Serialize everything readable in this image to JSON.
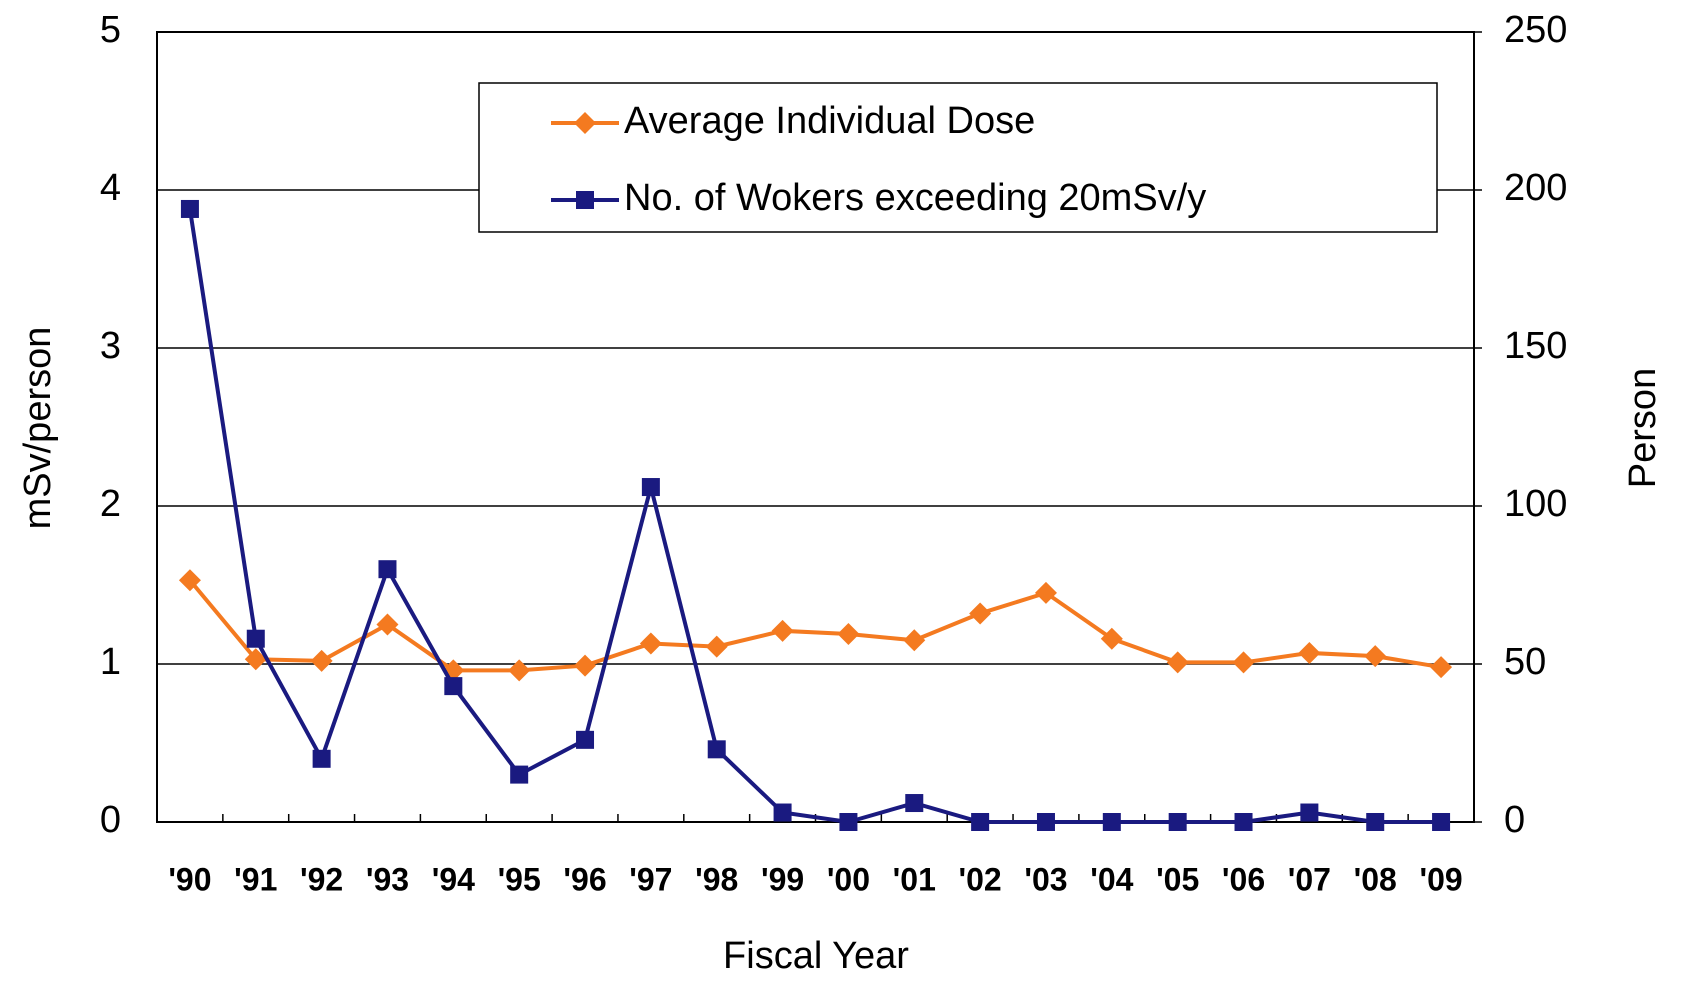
{
  "chart_data": {
    "type": "line",
    "x_label": "Fiscal Year",
    "y_label": "mSv/person",
    "y2_label": "Person",
    "categories": [
      "'90",
      "'91",
      "'92",
      "'93",
      "'94",
      "'95",
      "'96",
      "'97",
      "'98",
      "'99",
      "'00",
      "'01",
      "'02",
      "'03",
      "'04",
      "'05",
      "'06",
      "'07",
      "'08",
      "'09"
    ],
    "series": [
      {
        "name": "Average Individual Dose",
        "color": "#f47a20",
        "marker": "diamond",
        "values": [
          1.53,
          1.03,
          1.02,
          1.25,
          0.96,
          0.96,
          0.99,
          1.13,
          1.11,
          1.21,
          1.19,
          1.15,
          1.32,
          1.45,
          1.16,
          1.01,
          1.01,
          1.07,
          1.05,
          0.98
        ]
      },
      {
        "name": "No. of Wokers exceeding 20mSv/y",
        "color": "#1a1a80",
        "marker": "square",
        "axis": "y2",
        "values": [
          194,
          58,
          20,
          80,
          43,
          15,
          26,
          106,
          23,
          3,
          0,
          6,
          0,
          0,
          0,
          0,
          0,
          3,
          0,
          0
        ]
      }
    ],
    "ylim": [
      0,
      5
    ],
    "yticks": [
      0,
      1,
      2,
      3,
      4,
      5
    ],
    "y2lim": [
      0,
      250
    ],
    "y2ticks": [
      0,
      50,
      100,
      150,
      200,
      250
    ],
    "grid": true,
    "legend": "top-right"
  }
}
